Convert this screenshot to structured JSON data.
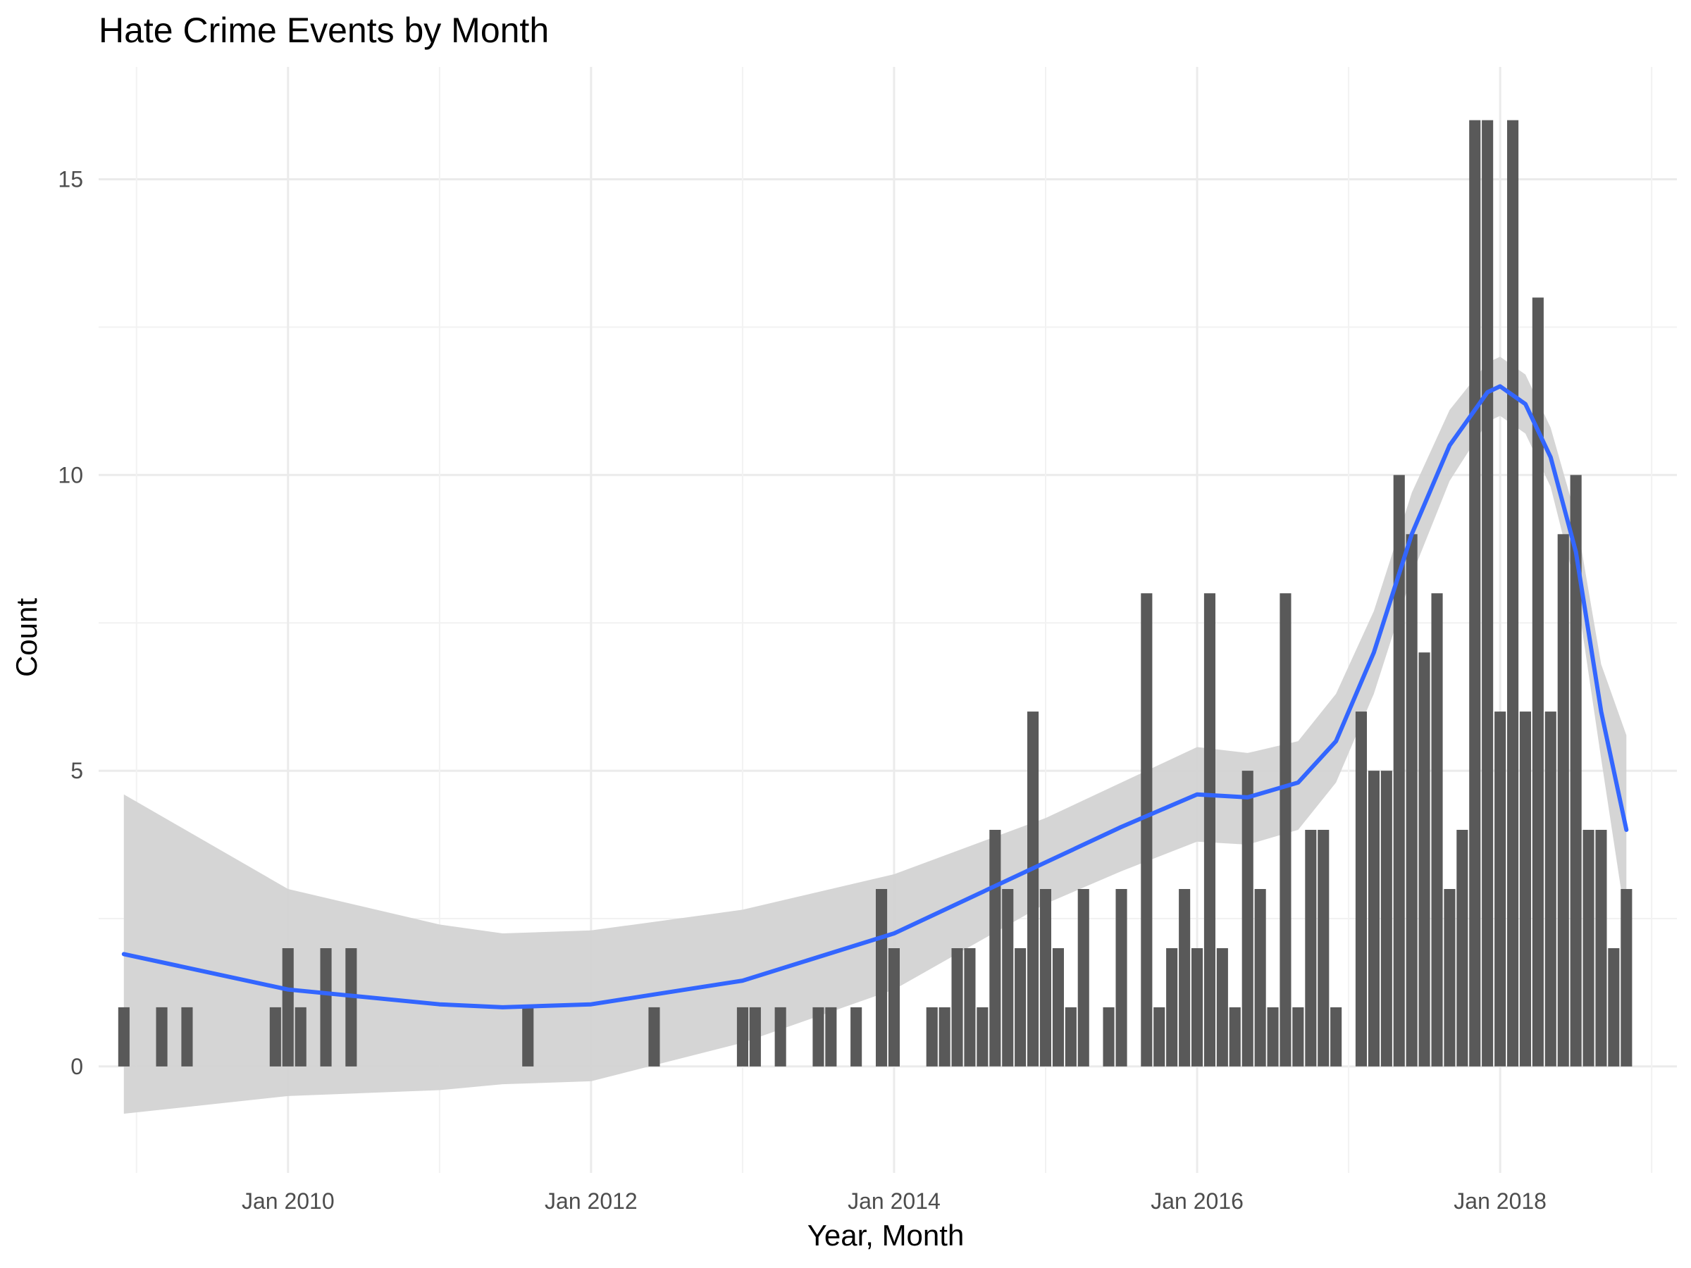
{
  "chart_data": {
    "type": "bar",
    "title": "Hate Crime Events by Month",
    "xlabel": "Year, Month",
    "ylabel": "Count",
    "x_ticks": [
      "Jan 2010",
      "Jan 2012",
      "Jan 2014",
      "Jan 2016",
      "Jan 2018"
    ],
    "y_ticks": [
      "0",
      "5",
      "10",
      "15"
    ],
    "ylim": [
      -1.8,
      16.9
    ],
    "xlim": [
      "2008-10",
      "2019-03"
    ],
    "grid": true,
    "legend": "none",
    "colors": {
      "bars": "#595959",
      "smooth_line": "#3366ff",
      "confidence_band": "#d3d3d3"
    },
    "bars": [
      {
        "x": "2008-12",
        "y": 1
      },
      {
        "x": "2009-03",
        "y": 1
      },
      {
        "x": "2009-05",
        "y": 1
      },
      {
        "x": "2009-12",
        "y": 1
      },
      {
        "x": "2010-01",
        "y": 2
      },
      {
        "x": "2010-02",
        "y": 1
      },
      {
        "x": "2010-04",
        "y": 2
      },
      {
        "x": "2010-06",
        "y": 2
      },
      {
        "x": "2011-08",
        "y": 1
      },
      {
        "x": "2012-06",
        "y": 1
      },
      {
        "x": "2013-01",
        "y": 1
      },
      {
        "x": "2013-02",
        "y": 1
      },
      {
        "x": "2013-04",
        "y": 1
      },
      {
        "x": "2013-07",
        "y": 1
      },
      {
        "x": "2013-08",
        "y": 1
      },
      {
        "x": "2013-10",
        "y": 1
      },
      {
        "x": "2013-12",
        "y": 3
      },
      {
        "x": "2014-01",
        "y": 2
      },
      {
        "x": "2014-04",
        "y": 1
      },
      {
        "x": "2014-05",
        "y": 1
      },
      {
        "x": "2014-06",
        "y": 2
      },
      {
        "x": "2014-07",
        "y": 2
      },
      {
        "x": "2014-08",
        "y": 1
      },
      {
        "x": "2014-09",
        "y": 4
      },
      {
        "x": "2014-10",
        "y": 3
      },
      {
        "x": "2014-11",
        "y": 2
      },
      {
        "x": "2014-12",
        "y": 6
      },
      {
        "x": "2015-01",
        "y": 3
      },
      {
        "x": "2015-02",
        "y": 2
      },
      {
        "x": "2015-03",
        "y": 1
      },
      {
        "x": "2015-04",
        "y": 3
      },
      {
        "x": "2015-06",
        "y": 1
      },
      {
        "x": "2015-07",
        "y": 3
      },
      {
        "x": "2015-09",
        "y": 8
      },
      {
        "x": "2015-10",
        "y": 1
      },
      {
        "x": "2015-11",
        "y": 2
      },
      {
        "x": "2015-12",
        "y": 3
      },
      {
        "x": "2016-01",
        "y": 2
      },
      {
        "x": "2016-02",
        "y": 8
      },
      {
        "x": "2016-03",
        "y": 2
      },
      {
        "x": "2016-04",
        "y": 1
      },
      {
        "x": "2016-05",
        "y": 5
      },
      {
        "x": "2016-06",
        "y": 3
      },
      {
        "x": "2016-07",
        "y": 1
      },
      {
        "x": "2016-08",
        "y": 8
      },
      {
        "x": "2016-09",
        "y": 1
      },
      {
        "x": "2016-10",
        "y": 4
      },
      {
        "x": "2016-11",
        "y": 4
      },
      {
        "x": "2016-12",
        "y": 1
      },
      {
        "x": "2017-02",
        "y": 6
      },
      {
        "x": "2017-03",
        "y": 5
      },
      {
        "x": "2017-04",
        "y": 5
      },
      {
        "x": "2017-05",
        "y": 10
      },
      {
        "x": "2017-06",
        "y": 9
      },
      {
        "x": "2017-07",
        "y": 7
      },
      {
        "x": "2017-08",
        "y": 8
      },
      {
        "x": "2017-09",
        "y": 3
      },
      {
        "x": "2017-10",
        "y": 4
      },
      {
        "x": "2017-11",
        "y": 16
      },
      {
        "x": "2017-12",
        "y": 16
      },
      {
        "x": "2018-01",
        "y": 6
      },
      {
        "x": "2018-02",
        "y": 16
      },
      {
        "x": "2018-03",
        "y": 6
      },
      {
        "x": "2018-04",
        "y": 13
      },
      {
        "x": "2018-05",
        "y": 6
      },
      {
        "x": "2018-06",
        "y": 9
      },
      {
        "x": "2018-07",
        "y": 10
      },
      {
        "x": "2018-08",
        "y": 4
      },
      {
        "x": "2018-09",
        "y": 4
      },
      {
        "x": "2018-10",
        "y": 2
      },
      {
        "x": "2018-11",
        "y": 3
      }
    ],
    "smooth": [
      {
        "x": "2008-12",
        "y": 1.9,
        "lo": -0.8,
        "hi": 4.6
      },
      {
        "x": "2010-01",
        "y": 1.3,
        "lo": -0.5,
        "hi": 3.0
      },
      {
        "x": "2011-01",
        "y": 1.05,
        "lo": -0.4,
        "hi": 2.4
      },
      {
        "x": "2011-06",
        "y": 1.0,
        "lo": -0.3,
        "hi": 2.25
      },
      {
        "x": "2012-01",
        "y": 1.05,
        "lo": -0.25,
        "hi": 2.3
      },
      {
        "x": "2013-01",
        "y": 1.45,
        "lo": 0.4,
        "hi": 2.65
      },
      {
        "x": "2014-01",
        "y": 2.25,
        "lo": 1.3,
        "hi": 3.25
      },
      {
        "x": "2015-01",
        "y": 3.45,
        "lo": 2.75,
        "hi": 4.2
      },
      {
        "x": "2015-07",
        "y": 4.05,
        "lo": 3.3,
        "hi": 4.8
      },
      {
        "x": "2016-01",
        "y": 4.6,
        "lo": 3.8,
        "hi": 5.4
      },
      {
        "x": "2016-05",
        "y": 4.55,
        "lo": 3.75,
        "hi": 5.3
      },
      {
        "x": "2016-09",
        "y": 4.8,
        "lo": 4.0,
        "hi": 5.5
      },
      {
        "x": "2016-12",
        "y": 5.5,
        "lo": 4.8,
        "hi": 6.3
      },
      {
        "x": "2017-03",
        "y": 7.0,
        "lo": 6.3,
        "hi": 7.7
      },
      {
        "x": "2017-06",
        "y": 9.0,
        "lo": 8.3,
        "hi": 9.7
      },
      {
        "x": "2017-09",
        "y": 10.5,
        "lo": 9.9,
        "hi": 11.1
      },
      {
        "x": "2017-12",
        "y": 11.4,
        "lo": 10.9,
        "hi": 11.9
      },
      {
        "x": "2018-01",
        "y": 11.5,
        "lo": 11.0,
        "hi": 12.0
      },
      {
        "x": "2018-03",
        "y": 11.2,
        "lo": 10.7,
        "hi": 11.7
      },
      {
        "x": "2018-05",
        "y": 10.3,
        "lo": 9.8,
        "hi": 10.8
      },
      {
        "x": "2018-07",
        "y": 8.7,
        "lo": 8.1,
        "hi": 9.3
      },
      {
        "x": "2018-09",
        "y": 6.0,
        "lo": 5.2,
        "hi": 6.8
      },
      {
        "x": "2018-11",
        "y": 4.0,
        "lo": 2.4,
        "hi": 5.6
      }
    ]
  }
}
